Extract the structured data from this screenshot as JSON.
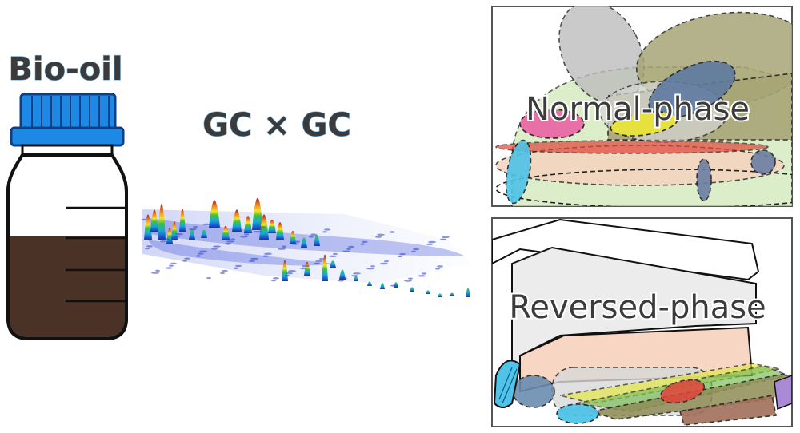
{
  "labels": {
    "bottle_title": "Bio-oil",
    "technique": "GC × GC",
    "panel_top_title": "Normal-phase",
    "panel_bottom_title": "Reversed-phase"
  },
  "colors": {
    "cap": "#1e88e5",
    "oil": "#4a3227",
    "peak_high": "#c0392b",
    "peak_low": "#1a2fbf"
  },
  "icons": {
    "bottle": "bottle-icon",
    "chromatogram": "3d-chromatogram-plot"
  }
}
